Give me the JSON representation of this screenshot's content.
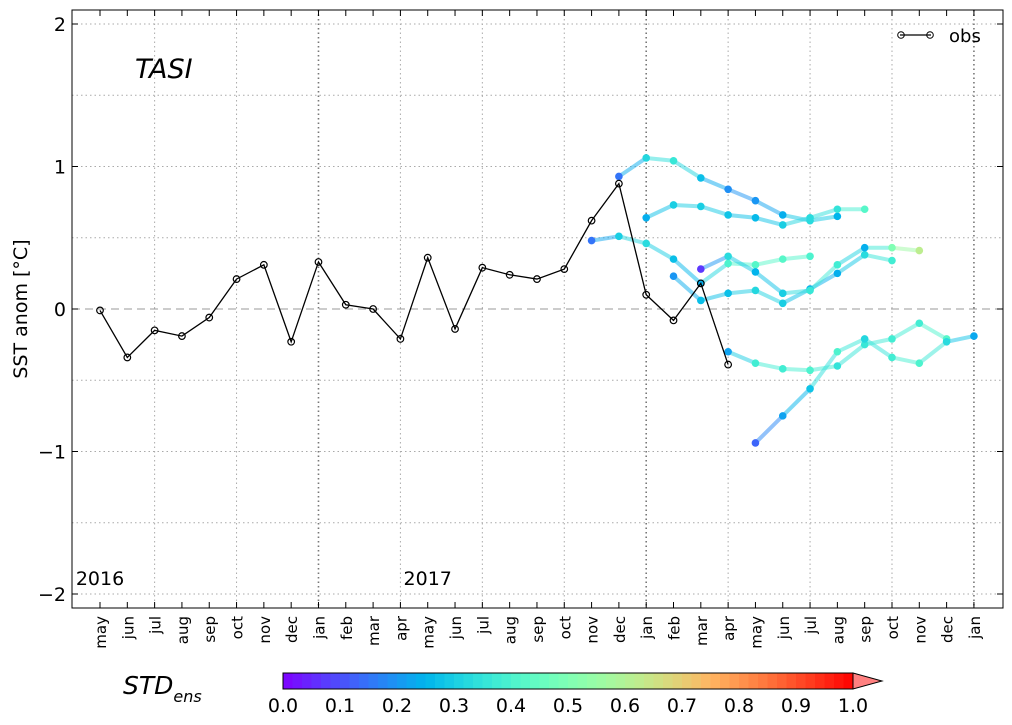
{
  "chart_data": {
    "type": "line",
    "title": "TASI",
    "ylabel": "SST anom [$^\\circ$C]",
    "ylabel_display": "SST anom [°C]",
    "ylim": [
      -2.1,
      2.1
    ],
    "yticks": [
      2,
      1,
      0,
      -1,
      -2
    ],
    "ytick_labels": [
      "2",
      "1",
      "0",
      "−1",
      "−2"
    ],
    "grid": true,
    "year_labels": [
      {
        "label": "2016",
        "at": 0
      },
      {
        "label": "2017",
        "at": 12
      }
    ],
    "categories": [
      "may",
      "jun",
      "jul",
      "aug",
      "sep",
      "oct",
      "nov",
      "dec",
      "jan",
      "feb",
      "mar",
      "apr",
      "may",
      "jun",
      "jul",
      "aug",
      "sep",
      "oct",
      "nov",
      "dec",
      "jan",
      "feb",
      "mar",
      "apr",
      "may",
      "jun",
      "jul",
      "aug",
      "sep",
      "oct",
      "nov",
      "dec",
      "jan"
    ],
    "legend": {
      "placement": "top-right",
      "entries": [
        "obs"
      ]
    },
    "obs": {
      "name": "obs",
      "color": "#000000",
      "values": [
        -0.01,
        -0.34,
        -0.15,
        -0.19,
        -0.06,
        0.21,
        0.31,
        -0.23,
        0.33,
        0.03,
        0.0,
        -0.21,
        0.36,
        -0.14,
        0.29,
        0.24,
        0.21,
        0.28,
        0.62,
        0.88,
        0.1,
        -0.08,
        0.18,
        -0.39
      ]
    },
    "forecasts": [
      {
        "start": 18,
        "values": [
          0.48,
          0.51,
          0.46,
          0.35,
          0.18,
          0.32,
          0.31,
          0.35,
          0.37
        ],
        "std": [
          0.15,
          0.3,
          0.33,
          0.27,
          0.24,
          0.4,
          0.42,
          0.42,
          0.4
        ]
      },
      {
        "start": 19,
        "values": [
          0.93,
          1.06,
          1.04,
          0.92,
          0.84,
          0.76,
          0.66,
          0.62,
          0.65
        ],
        "std": [
          0.15,
          0.32,
          0.36,
          0.27,
          0.19,
          0.2,
          0.24,
          0.33,
          0.25
        ]
      },
      {
        "start": 20,
        "values": [
          0.64,
          0.73,
          0.72,
          0.66,
          0.64,
          0.59,
          0.64,
          0.7,
          0.7
        ],
        "std": [
          0.24,
          0.3,
          0.3,
          0.28,
          0.26,
          0.3,
          0.33,
          0.35,
          0.42
        ]
      },
      {
        "start": 21,
        "values": [
          0.23,
          0.06,
          0.11,
          0.13,
          0.04,
          0.14,
          0.25,
          0.38,
          0.34
        ],
        "std": [
          0.2,
          0.27,
          0.27,
          0.32,
          0.3,
          0.24,
          0.24,
          0.33,
          0.38
        ]
      },
      {
        "start": 22,
        "values": [
          0.28,
          0.37,
          0.26,
          0.11,
          0.13,
          0.31,
          0.43,
          0.43,
          0.41
        ],
        "std": [
          0.07,
          0.33,
          0.25,
          0.3,
          0.36,
          0.38,
          0.24,
          0.5,
          0.62
        ]
      },
      {
        "start": 23,
        "values": [
          -0.3,
          -0.38,
          -0.42,
          -0.43,
          -0.4,
          -0.25,
          -0.21,
          -0.1,
          -0.21
        ],
        "std": [
          0.22,
          0.38,
          0.38,
          0.4,
          0.35,
          0.36,
          0.38,
          0.38,
          0.42
        ]
      },
      {
        "start": 24,
        "values": [
          -0.94,
          -0.75,
          -0.56,
          -0.3,
          -0.21,
          -0.34,
          -0.38,
          -0.23,
          -0.19
        ],
        "std": [
          0.13,
          0.22,
          0.28,
          0.4,
          0.32,
          0.38,
          0.4,
          0.33,
          0.23
        ]
      }
    ],
    "colorbar": {
      "label": "STD",
      "label_subscript": "ens",
      "colormap": "rainbow",
      "range": [
        0.0,
        1.0
      ],
      "extend": "max",
      "tick_labels": [
        "0.0",
        "0.1",
        "0.2",
        "0.3",
        "0.4",
        "0.5",
        "0.6",
        "0.7",
        "0.8",
        "0.9",
        "1.0"
      ]
    }
  }
}
